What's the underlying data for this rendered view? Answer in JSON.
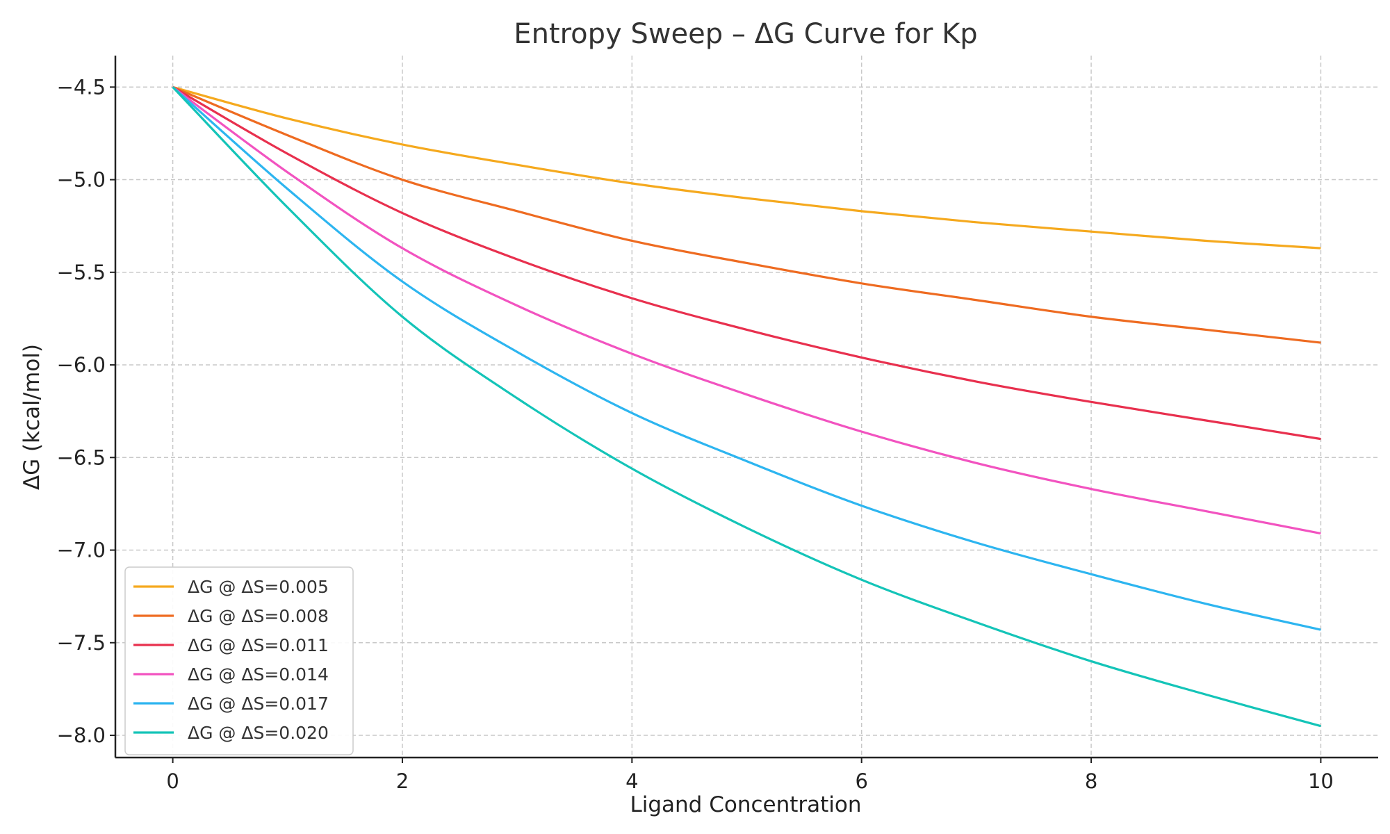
{
  "chart_data": {
    "type": "line",
    "title": "Entropy Sweep – ΔG Curve for Kp",
    "xlabel": "Ligand Concentration",
    "ylabel": "ΔG (kcal/mol)",
    "xlim": [
      -0.5,
      10.5
    ],
    "ylim": [
      -8.12,
      -4.33
    ],
    "xticks": [
      0,
      2,
      4,
      6,
      8,
      10
    ],
    "xtick_labels": [
      "0",
      "2",
      "4",
      "6",
      "8",
      "10"
    ],
    "yticks": [
      -4.5,
      -5.0,
      -5.5,
      -6.0,
      -6.5,
      -7.0,
      -7.5,
      -8.0
    ],
    "ytick_labels": [
      "−4.5",
      "−5.0",
      "−5.5",
      "−6.0",
      "−6.5",
      "−7.0",
      "−7.5",
      "−8.0"
    ],
    "grid": true,
    "legend_position": "lower-left",
    "x": [
      0,
      1,
      2,
      3,
      4,
      5,
      6,
      7,
      8,
      9,
      10
    ],
    "series": [
      {
        "name": "ΔG @ ΔS=0.005",
        "color": "#F5A91E",
        "values": [
          -4.5,
          -4.67,
          -4.81,
          -4.92,
          -5.02,
          -5.1,
          -5.17,
          -5.23,
          -5.28,
          -5.33,
          -5.37
        ]
      },
      {
        "name": "ΔG @ ΔS=0.008",
        "color": "#EE6B21",
        "values": [
          -4.5,
          -4.76,
          -5.0,
          -5.17,
          -5.33,
          -5.45,
          -5.56,
          -5.65,
          -5.74,
          -5.81,
          -5.88
        ]
      },
      {
        "name": "ΔG @ ΔS=0.011",
        "color": "#E8304E",
        "values": [
          -4.5,
          -4.86,
          -5.18,
          -5.43,
          -5.64,
          -5.81,
          -5.96,
          -6.09,
          -6.2,
          -6.3,
          -6.4
        ]
      },
      {
        "name": "ΔG @ ΔS=0.014",
        "color": "#F253C0",
        "values": [
          -4.5,
          -4.96,
          -5.37,
          -5.68,
          -5.94,
          -6.16,
          -6.36,
          -6.53,
          -6.67,
          -6.79,
          -6.91
        ]
      },
      {
        "name": "ΔG @ ΔS=0.017",
        "color": "#2DB5F0",
        "values": [
          -4.5,
          -5.05,
          -5.55,
          -5.93,
          -6.26,
          -6.52,
          -6.76,
          -6.96,
          -7.13,
          -7.29,
          -7.43
        ]
      },
      {
        "name": "ΔG @ ΔS=0.020",
        "color": "#14C4B8",
        "values": [
          -4.5,
          -5.15,
          -5.74,
          -6.18,
          -6.56,
          -6.88,
          -7.16,
          -7.39,
          -7.6,
          -7.78,
          -7.95
        ]
      }
    ]
  }
}
